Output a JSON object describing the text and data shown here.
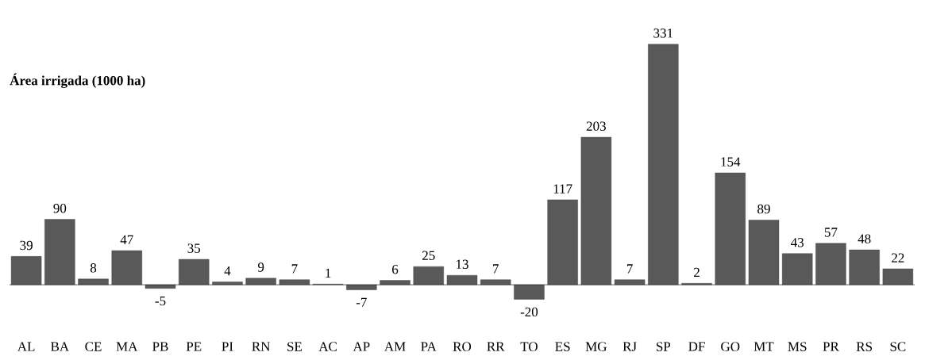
{
  "chart_data": {
    "type": "bar",
    "title": "Área irrigada (1000 ha)",
    "categories": [
      "AL",
      "BA",
      "CE",
      "MA",
      "PB",
      "PE",
      "PI",
      "RN",
      "SE",
      "AC",
      "AP",
      "AM",
      "PA",
      "RO",
      "RR",
      "TO",
      "ES",
      "MG",
      "RJ",
      "SP",
      "DF",
      "GO",
      "MT",
      "MS",
      "PR",
      "RS",
      "SC"
    ],
    "values": [
      39,
      90,
      8,
      47,
      -5,
      35,
      4,
      9,
      7,
      1,
      -7,
      6,
      25,
      13,
      7,
      -20,
      117,
      203,
      7,
      331,
      2,
      154,
      89,
      43,
      57,
      48,
      22
    ],
    "color": "#595959",
    "data_labels": true
  }
}
